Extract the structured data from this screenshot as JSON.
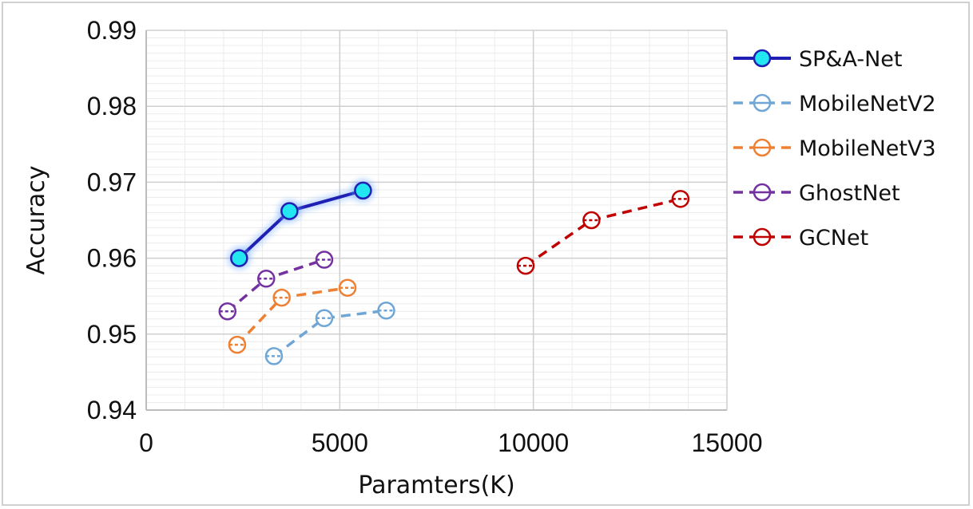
{
  "chart_data": {
    "type": "scatter",
    "xlabel": "Paramters(K)",
    "ylabel": "Accuracy",
    "xlim": [
      0,
      15000
    ],
    "ylim": [
      0.94,
      0.99
    ],
    "x_ticks": [
      0,
      5000,
      10000,
      15000
    ],
    "x_tick_labels": [
      "0",
      "5000",
      "10000",
      "15000"
    ],
    "y_ticks": [
      0.94,
      0.95,
      0.96,
      0.97,
      0.98,
      0.99
    ],
    "y_tick_labels": [
      "0.94",
      "0.95",
      "0.96",
      "0.97",
      "0.98",
      "0.99"
    ],
    "grid": true,
    "legend_position": "right",
    "series": [
      {
        "name": "SP&A-Net",
        "color": "#1f1fb4",
        "marker_fill": "#22e6f0",
        "line_style": "solid",
        "x": [
          2400,
          3700,
          5600
        ],
        "y": [
          0.96,
          0.9662,
          0.9689
        ]
      },
      {
        "name": "MobileNetV2",
        "color": "#6fa6d6",
        "marker_fill": "none",
        "line_style": "dashed",
        "x": [
          3300,
          4600,
          6200
        ],
        "y": [
          0.9471,
          0.9521,
          0.9531
        ]
      },
      {
        "name": "MobileNetV3",
        "color": "#ed8033",
        "marker_fill": "none",
        "line_style": "dashed",
        "x": [
          2350,
          3500,
          5200
        ],
        "y": [
          0.9486,
          0.9548,
          0.9561
        ]
      },
      {
        "name": "GhostNet",
        "color": "#7431a0",
        "marker_fill": "none",
        "line_style": "dashed",
        "x": [
          2100,
          3100,
          4600
        ],
        "y": [
          0.953,
          0.9573,
          0.9598
        ]
      },
      {
        "name": "GCNet",
        "color": "#c00000",
        "marker_fill": "none",
        "line_style": "dashed",
        "x": [
          9800,
          11500,
          13800
        ],
        "y": [
          0.959,
          0.965,
          0.9678
        ]
      }
    ]
  }
}
